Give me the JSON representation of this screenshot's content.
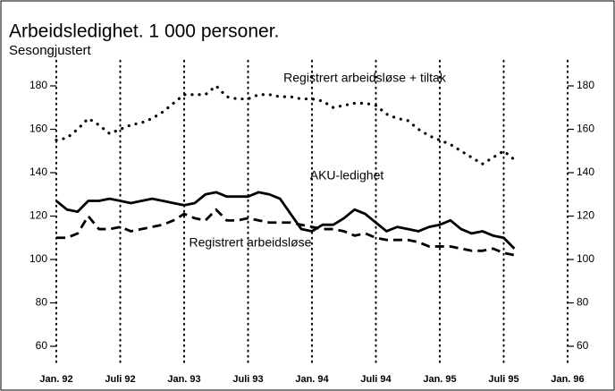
{
  "chart_data": {
    "type": "line",
    "title": "Arbeidsledighet. 1 000 personer.",
    "subtitle": "Sesongjustert",
    "xlim": [
      0,
      48
    ],
    "xticks": [
      {
        "value": 0,
        "label": "Jan. 92"
      },
      {
        "value": 6,
        "label": "Juli 92"
      },
      {
        "value": 12,
        "label": "Jan. 93"
      },
      {
        "value": 18,
        "label": "Juli 93"
      },
      {
        "value": 24,
        "label": "Jan. 94"
      },
      {
        "value": 30,
        "label": "Juli 94"
      },
      {
        "value": 36,
        "label": "Jan. 95"
      },
      {
        "value": 42,
        "label": "Juli 95"
      },
      {
        "value": 48,
        "label": "Jan. 96"
      }
    ],
    "ylim": [
      50,
      190
    ],
    "yticks": [
      60,
      80,
      100,
      120,
      140,
      160,
      180
    ],
    "y2lim": [
      50,
      190
    ],
    "y2ticks": [
      60,
      80,
      100,
      120,
      140,
      160,
      180
    ],
    "grid": true,
    "x": [
      0,
      1,
      2,
      3,
      4,
      5,
      6,
      7,
      8,
      9,
      10,
      11,
      12,
      13,
      14,
      15,
      16,
      17,
      18,
      19,
      20,
      21,
      22,
      23,
      24,
      25,
      26,
      27,
      28,
      29,
      30,
      31,
      32,
      33,
      34,
      35,
      36,
      37,
      38,
      39,
      40,
      41,
      42,
      43
    ],
    "series": [
      {
        "name": "Registrert arbeidsløse + tiltak",
        "color": "#000000",
        "dash": "dotted",
        "values": [
          155,
          156,
          160,
          165,
          162,
          158,
          160,
          162,
          163,
          165,
          168,
          172,
          176,
          176,
          176,
          180,
          175,
          174,
          174,
          176,
          176,
          175,
          175,
          174,
          174,
          173,
          170,
          171,
          172,
          172,
          171,
          167,
          165,
          164,
          160,
          157,
          155,
          153,
          150,
          147,
          144,
          147,
          150,
          146
        ]
      },
      {
        "name": "AKU-ledighet",
        "color": "#000000",
        "dash": "solid",
        "values": [
          127,
          123,
          122,
          127,
          127,
          128,
          127,
          126,
          127,
          128,
          127,
          126,
          125,
          126,
          130,
          131,
          129,
          129,
          129,
          131,
          130,
          128,
          121,
          114,
          113,
          116,
          116,
          119,
          123,
          121,
          117,
          113,
          115,
          114,
          113,
          115,
          116,
          118,
          114,
          112,
          113,
          111,
          110,
          105
        ]
      },
      {
        "name": "Registrert arbeidsløse",
        "color": "#000000",
        "dash": "dashed",
        "values": [
          110,
          110,
          112,
          120,
          114,
          114,
          115,
          113,
          114,
          115,
          116,
          118,
          121,
          119,
          118,
          123,
          118,
          118,
          119,
          118,
          117,
          117,
          117,
          116,
          115,
          114,
          114,
          113,
          111,
          112,
          110,
          109,
          109,
          109,
          108,
          106,
          106,
          106,
          105,
          104,
          104,
          105,
          103,
          102
        ]
      }
    ]
  }
}
